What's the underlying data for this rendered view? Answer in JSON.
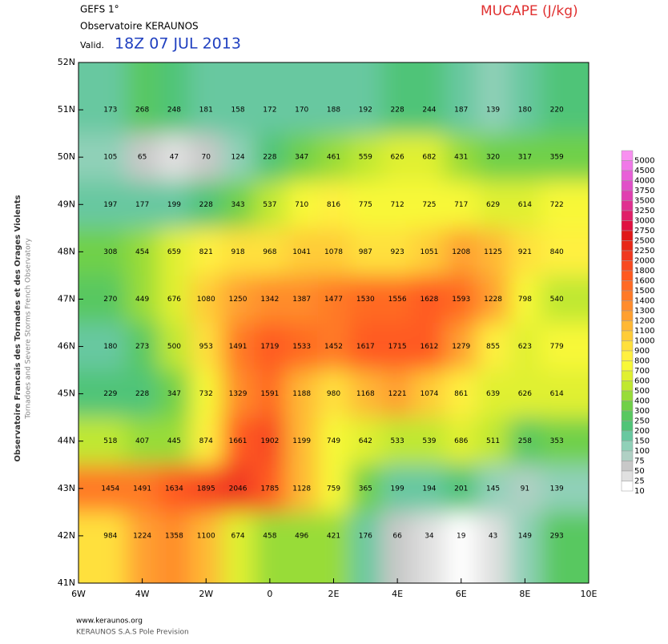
{
  "header": {
    "model": "GEFS 1°",
    "source": "Observatoire KERAUNOS",
    "valid_prefix": "Valid.",
    "valid_time": "18Z 07 JUL 2013",
    "parameter": "MUCAPE (J/kg)"
  },
  "side_text": [
    "Observatoire Francais des Tornades et des Orages Violents",
    "Tornadoes and Severe Storms French Observatory"
  ],
  "footer": [
    "www.keraunos.org",
    "KERAUNOS S.A.S Pole Prevision"
  ],
  "map": {
    "lat_labels": [
      "52N",
      "51N",
      "50N",
      "49N",
      "48N",
      "47N",
      "46N",
      "45N",
      "44N",
      "43N",
      "42N",
      "41N"
    ],
    "lon_labels": [
      "6W",
      "4W",
      "2W",
      "0",
      "2E",
      "4E",
      "6E",
      "8E",
      "10E"
    ],
    "grid": [
      [
        173,
        268,
        248,
        181,
        158,
        172,
        170,
        188,
        192,
        228,
        244,
        187,
        139,
        180,
        220
      ],
      [
        105,
        65,
        47,
        70,
        124,
        228,
        347,
        461,
        559,
        626,
        682,
        431,
        320,
        317,
        359
      ],
      [
        197,
        177,
        199,
        228,
        343,
        537,
        710,
        816,
        775,
        712,
        725,
        717,
        629,
        614,
        722
      ],
      [
        308,
        454,
        659,
        821,
        918,
        968,
        1041,
        1078,
        987,
        923,
        1051,
        1208,
        1125,
        921,
        840
      ],
      [
        270,
        449,
        676,
        1080,
        1250,
        1342,
        1387,
        1477,
        1530,
        1556,
        1628,
        1593,
        1228,
        798,
        540
      ],
      [
        180,
        273,
        500,
        953,
        1491,
        1719,
        1533,
        1452,
        1617,
        1715,
        1612,
        1279,
        855,
        623,
        779
      ],
      [
        229,
        228,
        347,
        732,
        1329,
        1591,
        1188,
        980,
        1168,
        1221,
        1074,
        861,
        639,
        626,
        614
      ],
      [
        518,
        407,
        445,
        874,
        1661,
        1902,
        1199,
        749,
        642,
        533,
        539,
        686,
        511,
        258,
        353
      ],
      [
        1454,
        1491,
        1634,
        1895,
        2046,
        1785,
        1128,
        759,
        365,
        199,
        194,
        201,
        145,
        91,
        139
      ],
      [
        984,
        1224,
        1358,
        1100,
        674,
        458,
        496,
        421,
        176,
        66,
        34,
        19,
        43,
        149,
        293
      ]
    ]
  },
  "legend": {
    "levels": [
      5000,
      4500,
      4000,
      3750,
      3500,
      3250,
      3000,
      2750,
      2500,
      2250,
      2000,
      1800,
      1600,
      1500,
      1400,
      1300,
      1200,
      1100,
      1000,
      900,
      800,
      700,
      600,
      500,
      400,
      300,
      250,
      200,
      150,
      100,
      75,
      50,
      25,
      10
    ],
    "colors": [
      "#f890f0",
      "#f078e8",
      "#e860d8",
      "#e050c8",
      "#e040b0",
      "#e03090",
      "#e02068",
      "#e01040",
      "#e01818",
      "#e82818",
      "#f03820",
      "#f84a20",
      "#ff5a20",
      "#ff6a24",
      "#ff7a28",
      "#ff8c2c",
      "#ffa030",
      "#ffb834",
      "#ffcc38",
      "#ffe03c",
      "#fff040",
      "#f8f838",
      "#e0f030",
      "#c0e830",
      "#98dc38",
      "#70d048",
      "#58c860",
      "#50c478",
      "#68c8a0",
      "#90d0b8",
      "#b0d0c4",
      "#c8c8c8",
      "#e0e0e0",
      "#ffffff"
    ]
  }
}
